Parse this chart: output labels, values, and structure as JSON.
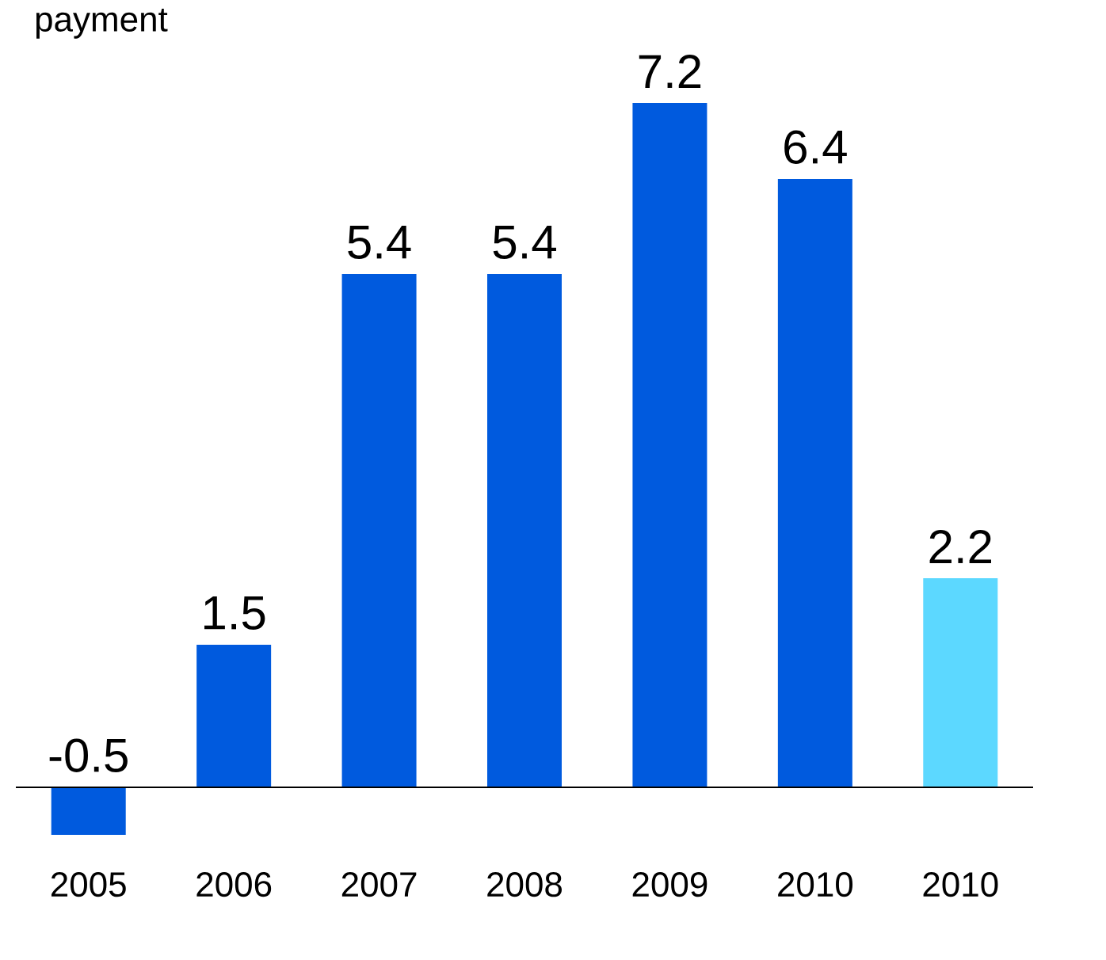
{
  "chart_data": {
    "type": "bar",
    "title": "payment",
    "categories": [
      "2005",
      "2006",
      "2007",
      "2008",
      "2009",
      "2010",
      "2010"
    ],
    "values": [
      -0.5,
      1.5,
      5.4,
      5.4,
      7.2,
      6.4,
      2.2
    ],
    "colors": [
      "#005ade",
      "#005ade",
      "#005ade",
      "#005ade",
      "#005ade",
      "#005ade",
      "#5cd8ff"
    ],
    "data_labels": true
  }
}
